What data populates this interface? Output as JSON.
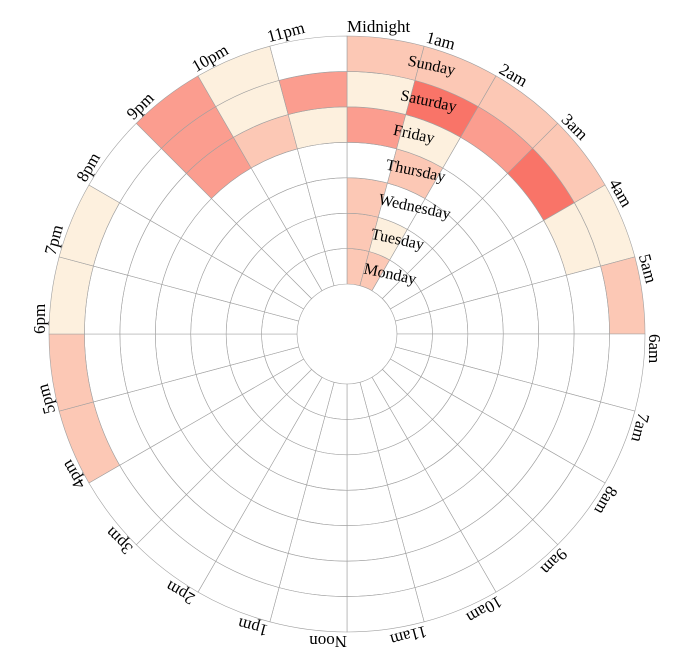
{
  "chart_data": {
    "type": "heatmap",
    "layout": "radial",
    "hours": [
      "Midnight",
      "1am",
      "2am",
      "3am",
      "4am",
      "5am",
      "6am",
      "7am",
      "8am",
      "9am",
      "10am",
      "11am",
      "Noon",
      "1pm",
      "2pm",
      "3pm",
      "4pm",
      "5pm",
      "6pm",
      "7pm",
      "8pm",
      "9pm",
      "10pm",
      "11pm"
    ],
    "days": [
      "Monday",
      "Tuesday",
      "Wednesday",
      "Thursday",
      "Friday",
      "Saturday",
      "Sunday"
    ],
    "color_scale": {
      "min": 0,
      "max": 5,
      "colors": [
        "#ffffff",
        "#fdf0de",
        "#fcc8b5",
        "#fb9d8f",
        "#f97468",
        "#f6483f",
        "#f20000"
      ]
    },
    "values": [
      [
        2,
        2,
        0,
        0,
        0,
        0,
        0,
        0,
        0,
        0,
        0,
        0,
        0,
        0,
        0,
        0,
        0,
        0,
        0,
        0,
        0,
        0,
        0,
        0
      ],
      [
        2,
        1,
        0,
        0,
        0,
        0,
        0,
        0,
        0,
        0,
        0,
        0,
        0,
        0,
        0,
        0,
        0,
        0,
        0,
        0,
        0,
        0,
        0,
        0
      ],
      [
        2,
        0,
        0,
        0,
        0,
        0,
        0,
        0,
        0,
        0,
        0,
        0,
        0,
        0,
        0,
        0,
        0,
        0,
        0,
        0,
        0,
        0,
        0,
        0
      ],
      [
        0,
        2,
        0,
        0,
        0,
        0,
        0,
        0,
        0,
        0,
        0,
        0,
        0,
        0,
        0,
        0,
        0,
        0,
        0,
        0,
        0,
        0,
        0,
        0
      ],
      [
        3,
        1,
        0,
        0,
        0,
        0,
        0,
        0,
        0,
        0,
        0,
        0,
        0,
        0,
        0,
        0,
        0,
        0,
        0,
        0,
        0,
        3,
        2,
        1
      ],
      [
        1,
        4,
        3,
        4,
        1,
        0,
        0,
        0,
        0,
        0,
        0,
        0,
        0,
        0,
        0,
        0,
        0,
        0,
        0,
        0,
        0,
        3,
        1,
        3
      ],
      [
        2,
        2,
        2,
        2,
        1,
        2,
        0,
        0,
        0,
        0,
        0,
        0,
        0,
        0,
        0,
        0,
        2,
        2,
        1,
        1,
        0,
        3,
        1,
        0
      ]
    ]
  }
}
